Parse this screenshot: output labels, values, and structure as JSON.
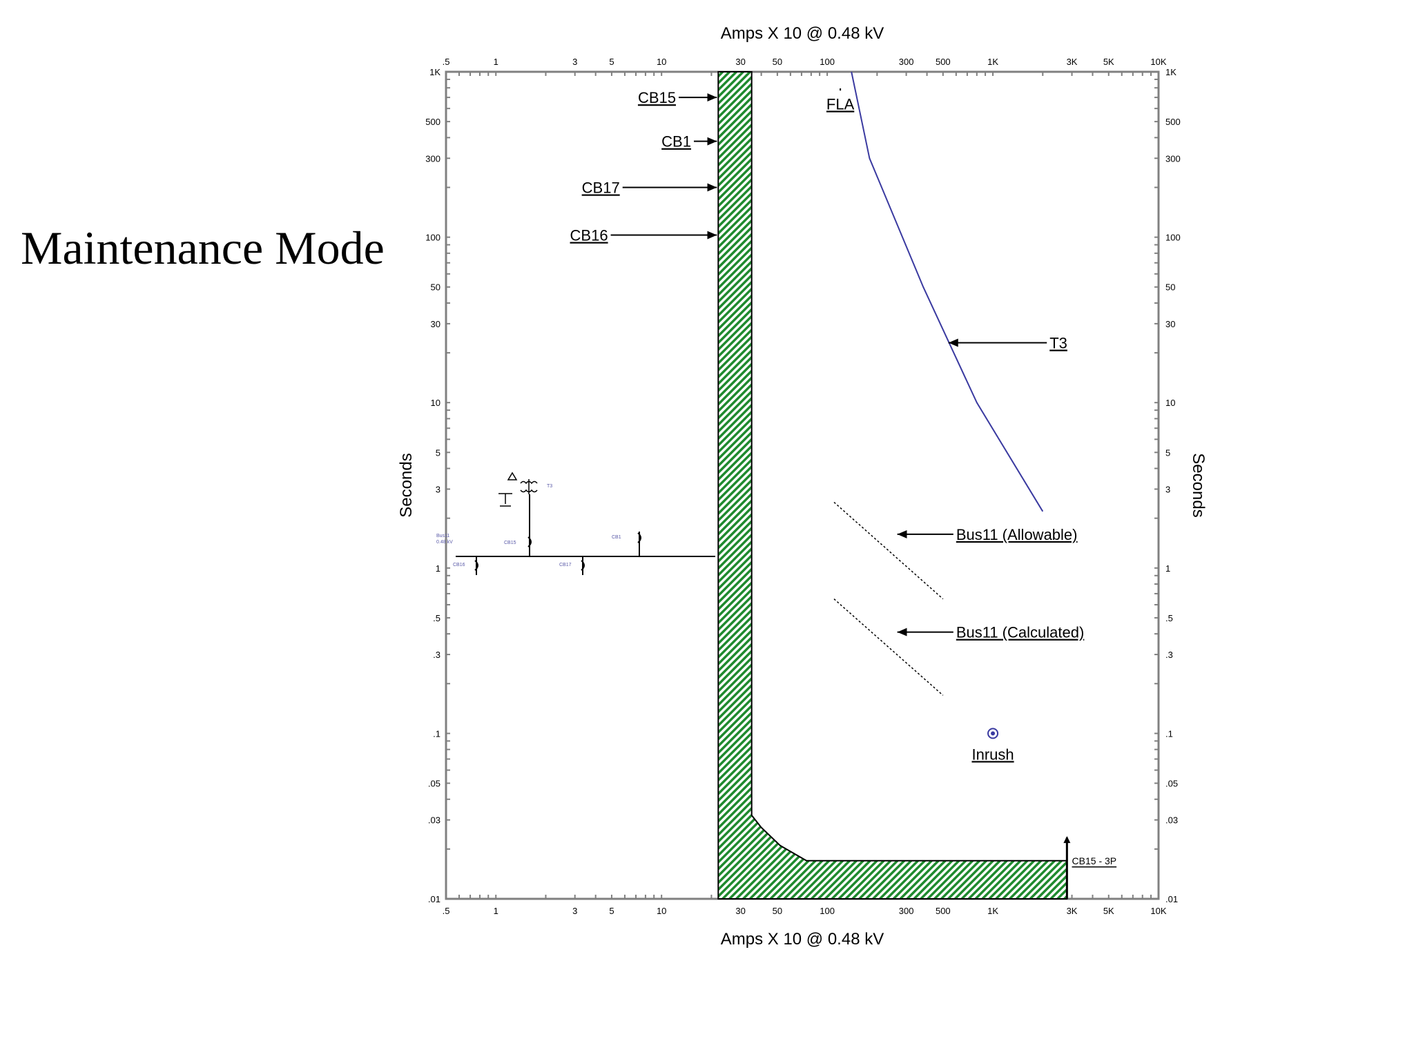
{
  "title": "Maintenance Mode",
  "colors": {
    "hatch": "#1f8a2e",
    "t3_curve": "#3a3aa0",
    "axis": "#808080",
    "oneline_label": "#5a5aa8"
  },
  "chart_data": {
    "type": "line",
    "x_scale": "log",
    "y_scale": "log",
    "xlim": [
      0.5,
      10000
    ],
    "ylim": [
      0.01,
      1000
    ],
    "xlabel_top": "Amps  X  10 @ 0.48 kV",
    "xlabel_bottom": "Amps  X  10 @ 0.48 kV",
    "ylabel_left": "Seconds",
    "ylabel_right": "Seconds",
    "x_ticks": [
      {
        "v": 0.5,
        "label": ".5"
      },
      {
        "v": 1,
        "label": "1"
      },
      {
        "v": 3,
        "label": "3"
      },
      {
        "v": 5,
        "label": "5"
      },
      {
        "v": 10,
        "label": "10"
      },
      {
        "v": 30,
        "label": "30"
      },
      {
        "v": 50,
        "label": "50"
      },
      {
        "v": 100,
        "label": "100"
      },
      {
        "v": 300,
        "label": "300"
      },
      {
        "v": 500,
        "label": "500"
      },
      {
        "v": 1000,
        "label": "1K"
      },
      {
        "v": 3000,
        "label": "3K"
      },
      {
        "v": 5000,
        "label": "5K"
      },
      {
        "v": 10000,
        "label": "10K"
      }
    ],
    "y_ticks": [
      {
        "v": 1000,
        "label": "1K"
      },
      {
        "v": 500,
        "label": "500"
      },
      {
        "v": 300,
        "label": "300"
      },
      {
        "v": 100,
        "label": "100"
      },
      {
        "v": 50,
        "label": "50"
      },
      {
        "v": 30,
        "label": "30"
      },
      {
        "v": 10,
        "label": "10"
      },
      {
        "v": 5,
        "label": "5"
      },
      {
        "v": 3,
        "label": "3"
      },
      {
        "v": 1,
        "label": "1"
      },
      {
        "v": 0.5,
        "label": ".5"
      },
      {
        "v": 0.3,
        "label": ".3"
      },
      {
        "v": 0.1,
        "label": ".1"
      },
      {
        "v": 0.05,
        "label": ".05"
      },
      {
        "v": 0.03,
        "label": ".03"
      },
      {
        "v": 0.01,
        "label": ".01"
      }
    ],
    "series": [
      {
        "name": "CB15 / CB1 / CB17 / CB16 (band)",
        "kind": "hatched-band",
        "band": [
          [
            22,
            1000
          ],
          [
            22,
            0.01
          ],
          [
            2800,
            0.01
          ],
          [
            2800,
            0.017
          ],
          [
            75,
            0.017
          ],
          [
            52,
            0.021
          ],
          [
            40,
            0.027
          ],
          [
            35,
            0.032
          ],
          [
            35,
            1000
          ]
        ]
      },
      {
        "name": "T3",
        "kind": "line",
        "points": [
          [
            140,
            1000
          ],
          [
            180,
            300
          ],
          [
            380,
            50
          ],
          [
            800,
            10
          ],
          [
            2000,
            2.2
          ]
        ]
      },
      {
        "name": "Bus11 (Allowable)",
        "kind": "dashed",
        "points": [
          [
            110,
            2.5
          ],
          [
            500,
            0.65
          ]
        ]
      },
      {
        "name": "Bus11 (Calculated)",
        "kind": "dashed",
        "points": [
          [
            110,
            0.65
          ],
          [
            500,
            0.17
          ]
        ]
      },
      {
        "name": "Inrush",
        "kind": "point",
        "points": [
          [
            1000,
            0.1
          ]
        ]
      },
      {
        "name": "FLA",
        "kind": "marker",
        "points": [
          [
            120,
            1000
          ],
          [
            120,
            800
          ]
        ]
      }
    ],
    "annotations": [
      {
        "text": "CB15",
        "tx": 7.2,
        "ty": 700,
        "ax": 22,
        "ay": 700
      },
      {
        "text": "CB1",
        "tx": 10,
        "ty": 380,
        "ax": 22,
        "ay": 380
      },
      {
        "text": "CB17",
        "tx": 3.3,
        "ty": 200,
        "ax": 22,
        "ay": 200
      },
      {
        "text": "CB16",
        "tx": 2.8,
        "ty": 103,
        "ax": 22,
        "ay": 103
      },
      {
        "text": "T3",
        "tx": 2200,
        "ty": 23,
        "ax": 550,
        "ay": 23
      },
      {
        "text": "Bus11 (Allowable)",
        "tx": 600,
        "ty": 1.6,
        "ax": 270,
        "ay": 1.6
      },
      {
        "text": "Bus11 (Calculated)",
        "tx": 600,
        "ty": 0.41,
        "ax": 270,
        "ay": 0.41
      },
      {
        "text": "Inrush",
        "tx": 1000,
        "ty": 0.075
      },
      {
        "text": "FLA",
        "tx": 120,
        "ty": 640
      },
      {
        "text": "CB15 - 3P",
        "tx": 3000,
        "ty": 0.0175
      }
    ]
  },
  "oneline": {
    "bus_label": "Bus11",
    "bus_voltage": "0.48 kV",
    "transformer": "T3",
    "breakers": [
      "CB16",
      "CB15",
      "CB17",
      "CB1"
    ]
  }
}
